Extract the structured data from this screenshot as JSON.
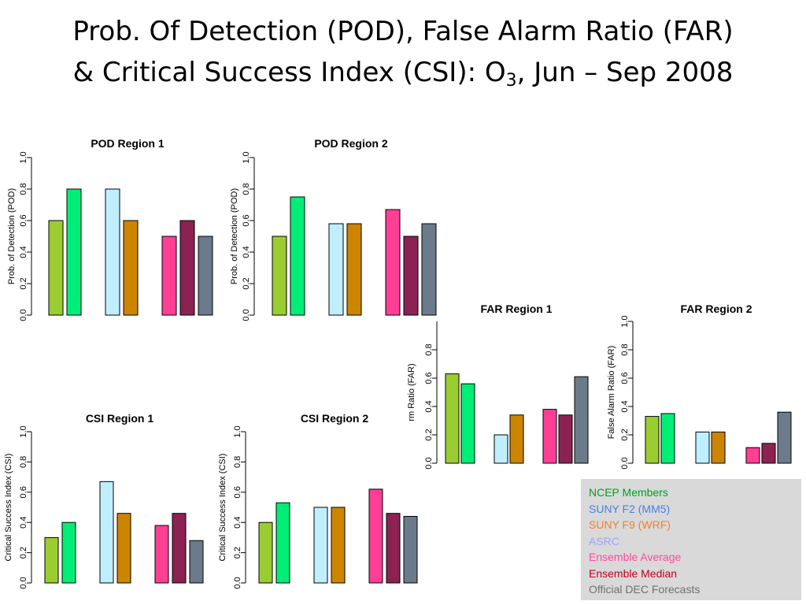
{
  "slide": {
    "title_line1": "Prob. Of Detection (POD), False Alarm Ratio (FAR)",
    "title_line2_prefix": "& Critical Success Index (CSI): O",
    "title_line2_sub": "3",
    "title_line2_suffix": ", Jun – Sep 2008"
  },
  "colors": {
    "bars": [
      "#9acd32",
      "#00ee76",
      "#bfefff",
      "#cd8500",
      "#ff3e96",
      "#8b2252",
      "#6c7b8b"
    ],
    "axis": "#000000"
  },
  "legend": {
    "items": [
      {
        "label": "NCEP Members",
        "color": "#00a020"
      },
      {
        "label": "SUNY F2 (MM5)",
        "color": "#4a7fe0"
      },
      {
        "label": "SUNY F9 (WRF)",
        "color": "#ee8030"
      },
      {
        "label": "ASRC",
        "color": "#a0a0ff"
      },
      {
        "label": "Ensemble Average",
        "color": "#ff4aa0"
      },
      {
        "label": "Ensemble Median",
        "color": "#c00020"
      },
      {
        "label": "Official DEC Forecasts",
        "color": "#707070"
      }
    ]
  },
  "chart_data": [
    {
      "type": "bar",
      "title": "POD Region 1",
      "ylabel": "Prob. of Detection (POD)",
      "ylim": [
        0,
        1
      ],
      "yticks": [
        "0.0",
        "0.2",
        "0.4",
        "0.6",
        "0.8",
        "1.0"
      ],
      "values": [
        0.6,
        0.8,
        0.8,
        0.6,
        0.5,
        0.6,
        0.5
      ]
    },
    {
      "type": "bar",
      "title": "POD Region 2",
      "ylabel": "Prob. of Detection (POD)",
      "ylim": [
        0,
        1
      ],
      "yticks": [
        "0.0",
        "0.2",
        "0.4",
        "0.6",
        "0.8",
        "1.0"
      ],
      "values": [
        0.5,
        0.75,
        0.58,
        0.58,
        0.67,
        0.5,
        0.58
      ]
    },
    {
      "type": "bar",
      "title": "FAR Region 1",
      "ylabel": "rm Ratio (FAR)",
      "ylim": [
        0,
        1
      ],
      "yticks": [
        "0.0",
        "0.2",
        "0.4",
        "0.6",
        "0.8"
      ],
      "values": [
        0.63,
        0.56,
        0.2,
        0.34,
        0.38,
        0.34,
        0.61
      ]
    },
    {
      "type": "bar",
      "title": "FAR Region 2",
      "ylabel": "False Alarm Ratio (FAR)",
      "ylim": [
        0,
        1
      ],
      "yticks": [
        "0.0",
        "0.2",
        "0.4",
        "0.6",
        "0.8",
        "1.0"
      ],
      "values": [
        0.33,
        0.35,
        0.22,
        0.22,
        0.11,
        0.14,
        0.36
      ]
    },
    {
      "type": "bar",
      "title": "CSI Region 1",
      "ylabel": "Critical Success Index (CSI)",
      "ylim": [
        0,
        1
      ],
      "yticks": [
        "0.0",
        "0.2",
        "0.4",
        "0.6",
        "0.8",
        "1.0"
      ],
      "values": [
        0.3,
        0.4,
        0.67,
        0.46,
        0.38,
        0.46,
        0.28
      ]
    },
    {
      "type": "bar",
      "title": "CSI Region 2",
      "ylabel": "Critical Success Index (CSI)",
      "ylim": [
        0,
        1
      ],
      "yticks": [
        "0.0",
        "0.2",
        "0.4",
        "0.6",
        "0.8",
        "1.0"
      ],
      "values": [
        0.4,
        0.53,
        0.5,
        0.5,
        0.62,
        0.46,
        0.44
      ]
    }
  ]
}
